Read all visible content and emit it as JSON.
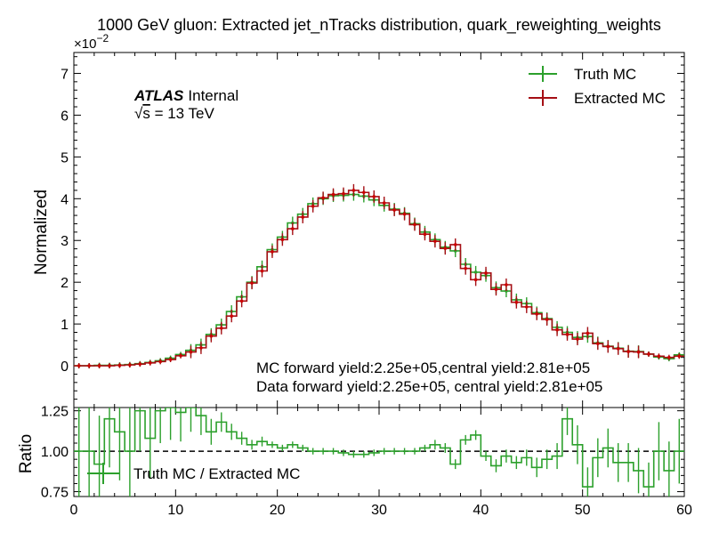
{
  "chart_data": [
    {
      "type": "step",
      "panel": "main",
      "title": "1000 GeV gluon: Extracted jet_nTracks distribution, quark_reweighting_weights",
      "ylabel": "Normalized",
      "y_scale_text": "×10",
      "y_scale_exp": "−2",
      "ylim": [
        -1,
        7.5
      ],
      "xlim": [
        0,
        60
      ],
      "yticks": [
        "0",
        "1",
        "2",
        "3",
        "4",
        "5",
        "6",
        "7"
      ],
      "atlas_label": "ATLAS",
      "atlas_suffix": "Internal",
      "energy_sqrt": "√",
      "energy_s": "s",
      "energy_value": " =  13 TeV",
      "annotations": [
        "MC forward yield:2.25e+05,central yield:2.81e+05",
        "Data forward yield:2.25e+05, central yield:2.81e+05"
      ],
      "legend_placement": "top-right",
      "colors": {
        "truth": "#2ca02c",
        "extracted": "#a50f15",
        "marker": "#cc0000"
      },
      "series": [
        {
          "name": "Truth MC",
          "bin_edges": [
            0,
            1,
            2,
            3,
            4,
            5,
            6,
            7,
            8,
            9,
            10,
            11,
            12,
            13,
            14,
            15,
            16,
            17,
            18,
            19,
            20,
            21,
            22,
            23,
            24,
            25,
            26,
            27,
            28,
            29,
            30,
            31,
            32,
            33,
            34,
            35,
            36,
            37,
            38,
            39,
            40,
            41,
            42,
            43,
            44,
            45,
            46,
            47,
            48,
            49,
            50,
            51,
            52,
            53,
            54,
            55,
            56,
            57,
            58,
            59,
            60
          ],
          "values": [
            0.0,
            0.0,
            0.01,
            0.01,
            0.02,
            0.03,
            0.05,
            0.08,
            0.12,
            0.18,
            0.27,
            0.37,
            0.5,
            0.75,
            0.98,
            1.3,
            1.65,
            2.0,
            2.37,
            2.78,
            3.08,
            3.42,
            3.63,
            3.88,
            4.0,
            4.07,
            4.08,
            4.1,
            4.06,
            3.97,
            3.84,
            3.75,
            3.65,
            3.4,
            3.2,
            3.02,
            2.84,
            2.75,
            2.43,
            2.24,
            2.16,
            1.87,
            1.79,
            1.58,
            1.49,
            1.27,
            1.13,
            0.92,
            0.8,
            0.68,
            0.7,
            0.55,
            0.47,
            0.42,
            0.35,
            0.34,
            0.28,
            0.21,
            0.17,
            0.26
          ]
        },
        {
          "name": "Extracted MC",
          "bin_edges": [
            0,
            1,
            2,
            3,
            4,
            5,
            6,
            7,
            8,
            9,
            10,
            11,
            12,
            13,
            14,
            15,
            16,
            17,
            18,
            19,
            20,
            21,
            22,
            23,
            24,
            25,
            26,
            27,
            28,
            29,
            30,
            31,
            32,
            33,
            34,
            35,
            36,
            37,
            38,
            39,
            40,
            41,
            42,
            43,
            44,
            45,
            46,
            47,
            48,
            49,
            50,
            51,
            52,
            53,
            54,
            55,
            56,
            57,
            58,
            59,
            60
          ],
          "values": [
            0.0,
            0.0,
            0.0,
            0.0,
            0.01,
            0.02,
            0.04,
            0.07,
            0.1,
            0.15,
            0.24,
            0.33,
            0.43,
            0.71,
            0.9,
            1.19,
            1.55,
            1.98,
            2.27,
            2.73,
            3.02,
            3.28,
            3.56,
            3.82,
            4.02,
            4.1,
            4.12,
            4.2,
            4.15,
            4.05,
            3.9,
            3.73,
            3.63,
            3.38,
            3.15,
            2.98,
            2.81,
            2.9,
            2.33,
            2.06,
            2.22,
            1.83,
            1.94,
            1.52,
            1.41,
            1.24,
            1.11,
            0.86,
            0.75,
            0.64,
            0.78,
            0.53,
            0.46,
            0.41,
            0.34,
            0.33,
            0.28,
            0.23,
            0.2,
            0.23
          ]
        }
      ]
    },
    {
      "type": "step",
      "panel": "ratio",
      "xlabel": "",
      "ylabel": "Ratio",
      "ylim": [
        0.72,
        1.27
      ],
      "xlim": [
        0,
        60
      ],
      "reference_line": 1.0,
      "yticks": [
        "0.75",
        "1.00",
        "1.25"
      ],
      "xticks": [
        "0",
        "10",
        "20",
        "30",
        "40",
        "50",
        "60"
      ],
      "legend_placement": "bottom-left",
      "series": [
        {
          "name": "Truth MC / Extracted MC",
          "bin_edges": [
            0,
            1,
            2,
            3,
            4,
            5,
            6,
            7,
            8,
            9,
            10,
            11,
            12,
            13,
            14,
            15,
            16,
            17,
            18,
            19,
            20,
            21,
            22,
            23,
            24,
            25,
            26,
            27,
            28,
            29,
            30,
            31,
            32,
            33,
            34,
            35,
            36,
            37,
            38,
            39,
            40,
            41,
            42,
            43,
            44,
            45,
            46,
            47,
            48,
            49,
            50,
            51,
            52,
            53,
            54,
            55,
            56,
            57,
            58,
            59,
            60
          ],
          "values": [
            1.0,
            1.0,
            0.92,
            1.2,
            1.12,
            1.0,
            1.25,
            1.08,
            1.25,
            1.27,
            1.24,
            1.27,
            1.22,
            1.12,
            1.18,
            1.12,
            1.08,
            1.04,
            1.06,
            1.04,
            1.02,
            1.04,
            1.02,
            1.0,
            1.0,
            1.0,
            0.99,
            0.98,
            0.98,
            0.99,
            1.0,
            1.0,
            1.0,
            1.0,
            1.02,
            1.04,
            1.02,
            0.92,
            1.07,
            1.1,
            0.97,
            0.91,
            0.97,
            0.93,
            0.96,
            0.9,
            0.95,
            0.97,
            1.2,
            1.04,
            0.78,
            0.96,
            1.02,
            0.93,
            0.93,
            0.88,
            0.78,
            1.0,
            0.88,
            1.0
          ],
          "errors": [
            0.3,
            0.3,
            0.3,
            0.3,
            0.3,
            0.3,
            0.25,
            0.25,
            0.2,
            0.2,
            0.18,
            0.15,
            0.12,
            0.08,
            0.06,
            0.05,
            0.04,
            0.03,
            0.03,
            0.02,
            0.02,
            0.02,
            0.02,
            0.02,
            0.02,
            0.02,
            0.02,
            0.02,
            0.02,
            0.02,
            0.02,
            0.02,
            0.02,
            0.02,
            0.02,
            0.03,
            0.03,
            0.03,
            0.03,
            0.03,
            0.03,
            0.04,
            0.04,
            0.04,
            0.05,
            0.06,
            0.06,
            0.08,
            0.1,
            0.12,
            0.12,
            0.12,
            0.12,
            0.12,
            0.12,
            0.14,
            0.15,
            0.18,
            0.18,
            0.2
          ]
        }
      ]
    }
  ]
}
